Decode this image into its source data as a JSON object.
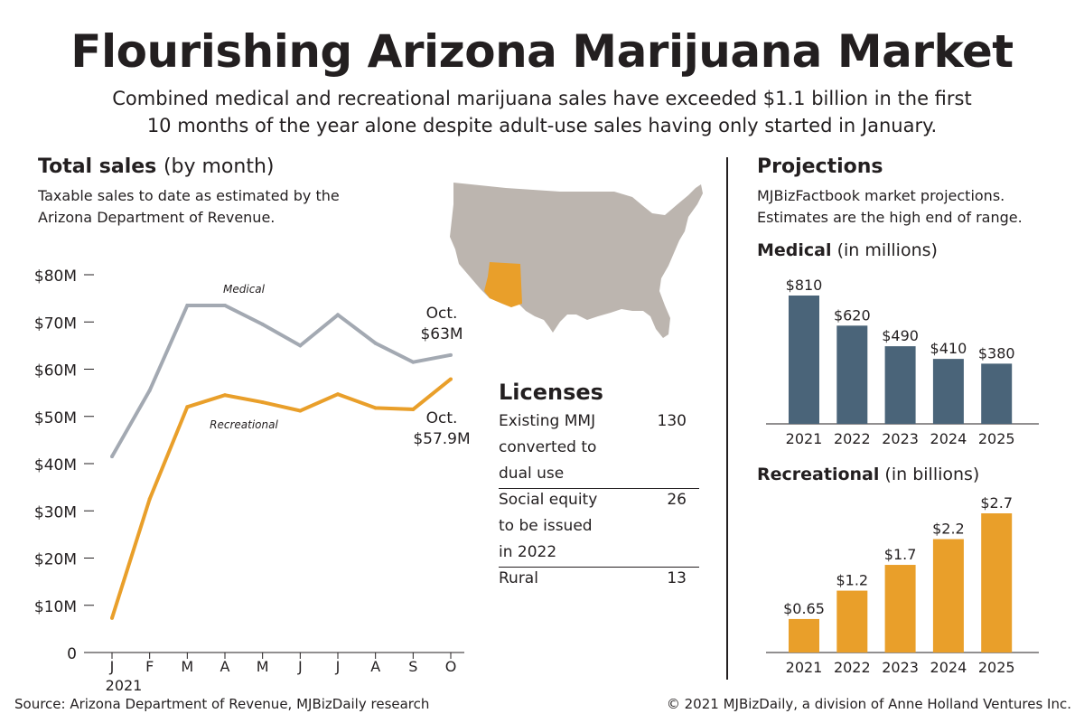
{
  "header": {
    "title": "Flourishing Arizona Marijuana Market",
    "subtitle_line1": "Combined medical and recreational marijuana sales have exceeded $1.1 billion in the first",
    "subtitle_line2": "10 months of the year alone despite adult-use sales having only started in January."
  },
  "total_sales": {
    "heading_bold": "Total sales",
    "heading_light": "(by month)",
    "note_line1": "Taxable sales to date as estimated by the",
    "note_line2": "Arizona Department of Revenue.",
    "medical_label": "Medical",
    "recreational_label": "Recreational",
    "medical_end_line1": "Oct.",
    "medical_end_line2": "$63M",
    "rec_end_line1": "Oct.",
    "rec_end_line2": "$57.9M",
    "year_label": "2021"
  },
  "projections": {
    "heading": "Projections",
    "note_line1": "MJBizFactbook market projections.",
    "note_line2": "Estimates are the high end of range.",
    "medical_heading_bold": "Medical",
    "medical_heading_light": "(in millions)",
    "rec_heading_bold": "Recreational",
    "rec_heading_light": "(in billions)"
  },
  "licenses": {
    "title": "Licenses",
    "rows": [
      {
        "label_lines": [
          "Existing MMJ",
          "converted to",
          "dual use"
        ],
        "value": "130"
      },
      {
        "label_lines": [
          "Social equity",
          "to be issued",
          "in 2022"
        ],
        "value": "26"
      },
      {
        "label_lines": [
          "Rural"
        ],
        "value": "13"
      }
    ]
  },
  "footer": {
    "source": "Source: Arizona Department of Revenue, MJBizDaily research",
    "credit": "© 2021 MJBizDaily, a division of Anne Holland Ventures Inc."
  },
  "colors": {
    "medical_line": "#a3a9b2",
    "recreational_line": "#e99f2a",
    "medical_bar": "#4a6479",
    "recreational_bar": "#e99f2a",
    "map_fill": "#bcb5af",
    "arizona_fill": "#e99f2a"
  },
  "chart_data": [
    {
      "type": "line",
      "title": "Total sales (by month)",
      "x": [
        "J",
        "F",
        "M",
        "A",
        "M",
        "J",
        "J",
        "A",
        "S",
        "O"
      ],
      "series": [
        {
          "name": "Medical",
          "values": [
            41.5,
            55.5,
            73.5,
            73.5,
            69.5,
            65,
            71.5,
            65.5,
            61.5,
            63
          ]
        },
        {
          "name": "Recreational",
          "values": [
            7.3,
            32.5,
            52,
            54.5,
            53,
            51.2,
            54.7,
            51.8,
            51.5,
            57.9
          ]
        }
      ],
      "yticks": [
        "0",
        "$10M",
        "$20M",
        "$30M",
        "$40M",
        "$50M",
        "$60M",
        "$70M",
        "$80M"
      ],
      "ylim": [
        0,
        80
      ],
      "grid": false
    },
    {
      "type": "bar",
      "title": "Medical (in millions)",
      "categories": [
        "2021",
        "2022",
        "2023",
        "2024",
        "2025"
      ],
      "values": [
        810,
        620,
        490,
        410,
        380
      ],
      "value_labels": [
        "$810",
        "$620",
        "$490",
        "$410",
        "$380"
      ],
      "ylim": [
        0,
        810
      ]
    },
    {
      "type": "bar",
      "title": "Recreational (in billions)",
      "categories": [
        "2021",
        "2022",
        "2023",
        "2024",
        "2025"
      ],
      "values": [
        0.65,
        1.2,
        1.7,
        2.2,
        2.7
      ],
      "value_labels": [
        "$0.65",
        "$1.2",
        "$1.7",
        "$2.2",
        "$2.7"
      ],
      "ylim": [
        0,
        2.7
      ]
    }
  ]
}
